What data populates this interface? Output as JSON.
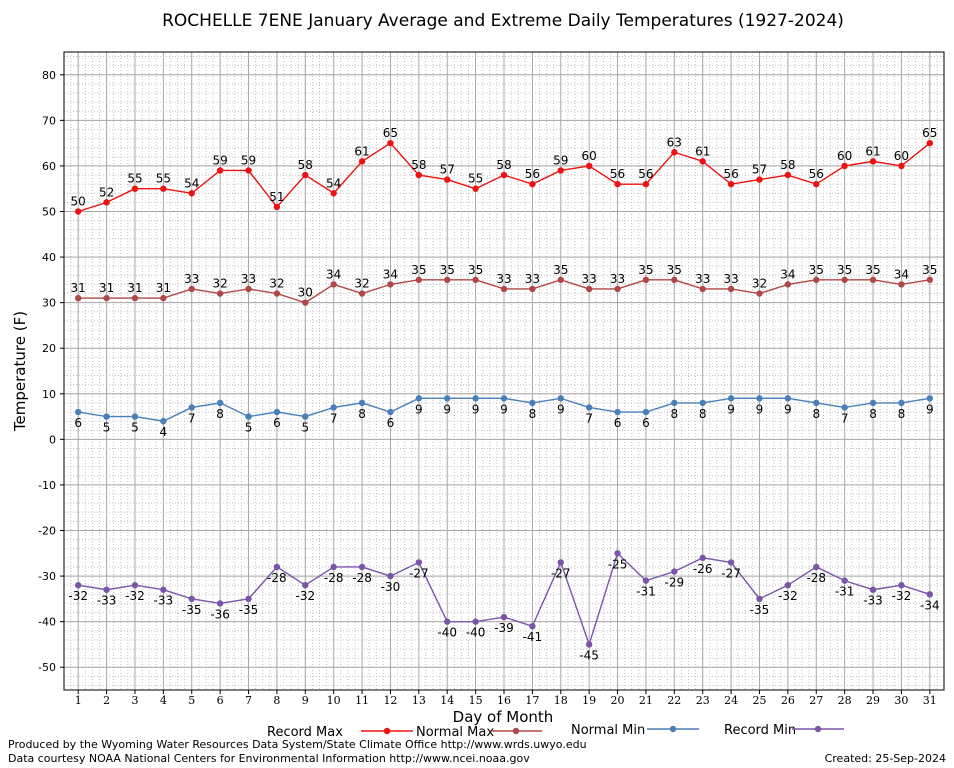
{
  "chart_data": {
    "type": "line",
    "title": "ROCHELLE 7ENE January Average and Extreme Daily Temperatures (1927-2024)",
    "xlabel": "Day of Month",
    "ylabel": "Temperature (F)",
    "ylim": [
      -55,
      85
    ],
    "yticks": [
      80,
      70,
      60,
      50,
      40,
      30,
      20,
      10,
      0,
      -10,
      -20,
      -30,
      -40,
      -50
    ],
    "x": [
      1,
      2,
      3,
      4,
      5,
      6,
      7,
      8,
      9,
      10,
      11,
      12,
      13,
      14,
      15,
      16,
      17,
      18,
      19,
      20,
      21,
      22,
      23,
      24,
      25,
      26,
      27,
      28,
      29,
      30,
      31
    ],
    "grid": true,
    "legend_position": "bottom",
    "series": [
      {
        "name": "Record Max",
        "color": "#ee1111",
        "label_pos": "above",
        "values": [
          50,
          52,
          55,
          55,
          54,
          59,
          59,
          51,
          58,
          54,
          61,
          65,
          58,
          57,
          55,
          58,
          56,
          59,
          60,
          56,
          56,
          63,
          61,
          56,
          57,
          58,
          56,
          60,
          61,
          60,
          65
        ]
      },
      {
        "name": "Normal Max",
        "color": "#b04848",
        "label_pos": "above",
        "values": [
          31,
          31,
          31,
          31,
          33,
          32,
          33,
          32,
          30,
          34,
          32,
          34,
          35,
          35,
          35,
          33,
          33,
          35,
          33,
          33,
          35,
          35,
          33,
          33,
          32,
          34,
          35,
          35,
          35,
          34,
          35
        ]
      },
      {
        "name": "Normal Min",
        "color": "#4a7fb8",
        "label_pos": "below",
        "values": [
          6,
          5,
          5,
          4,
          7,
          8,
          5,
          6,
          5,
          7,
          8,
          6,
          9,
          9,
          9,
          9,
          8,
          9,
          7,
          6,
          6,
          8,
          8,
          9,
          9,
          9,
          8,
          7,
          8,
          8,
          9
        ]
      },
      {
        "name": "Record Min",
        "color": "#7a55a8",
        "label_pos": "below",
        "values": [
          -32,
          -33,
          -32,
          -33,
          -35,
          -36,
          -35,
          -28,
          -32,
          -28,
          -28,
          -30,
          -27,
          -40,
          -40,
          -39,
          -41,
          -27,
          -45,
          -25,
          -31,
          -29,
          -26,
          -27,
          -35,
          -32,
          -28,
          -31,
          -33,
          -32,
          -34
        ]
      }
    ]
  },
  "footer": {
    "produced_by": "Produced by the Wyoming Water Resources Data System/State Climate Office http://www.wrds.uwyo.edu",
    "data_courtesy": "Data courtesy NOAA National Centers for Environmental Information http://www.ncei.noaa.gov",
    "created": "Created:  25-Sep-2024"
  }
}
